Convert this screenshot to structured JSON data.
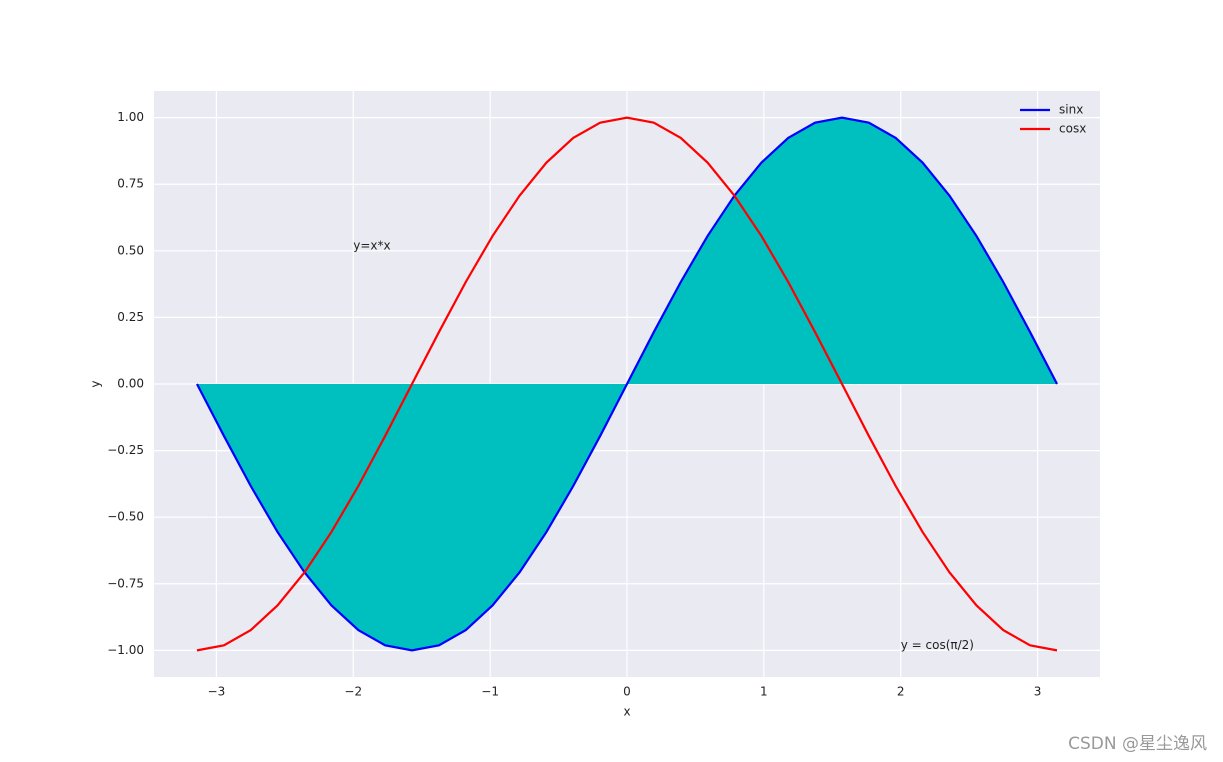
{
  "chart_data": {
    "type": "line",
    "x": [
      -3.142,
      -2.945,
      -2.749,
      -2.553,
      -2.356,
      -2.16,
      -1.963,
      -1.767,
      -1.571,
      -1.374,
      -1.178,
      -0.982,
      -0.785,
      -0.589,
      -0.393,
      -0.196,
      0,
      0.196,
      0.393,
      0.589,
      0.785,
      0.982,
      1.178,
      1.374,
      1.571,
      1.767,
      1.963,
      2.16,
      2.356,
      2.553,
      2.749,
      2.945,
      3.142
    ],
    "series": [
      {
        "name": "sinx",
        "color": "#0000ff",
        "fill": "#00bfbf",
        "values": [
          0,
          -0.195,
          -0.383,
          -0.556,
          -0.707,
          -0.831,
          -0.924,
          -0.981,
          -1,
          -0.981,
          -0.924,
          -0.831,
          -0.707,
          -0.556,
          -0.383,
          -0.195,
          0,
          0.195,
          0.383,
          0.556,
          0.707,
          0.831,
          0.924,
          0.981,
          1,
          0.981,
          0.924,
          0.831,
          0.707,
          0.556,
          0.383,
          0.195,
          0
        ]
      },
      {
        "name": "cosx",
        "color": "#ff0000",
        "values": [
          -1,
          -0.981,
          -0.924,
          -0.831,
          -0.707,
          -0.556,
          -0.383,
          -0.195,
          0,
          0.195,
          0.383,
          0.556,
          0.707,
          0.831,
          0.924,
          0.981,
          1,
          0.981,
          0.924,
          0.831,
          0.707,
          0.556,
          0.383,
          0.195,
          0,
          -0.195,
          -0.383,
          -0.556,
          -0.707,
          -0.831,
          -0.924,
          -0.981,
          -1
        ]
      }
    ],
    "xlabel": "x",
    "ylabel": "y",
    "xlim": [
      -3.456,
      3.456
    ],
    "ylim": [
      -1.1,
      1.1
    ],
    "xticks": [
      {
        "value": -3,
        "label": "−3"
      },
      {
        "value": -2,
        "label": "−2"
      },
      {
        "value": -1,
        "label": "−1"
      },
      0,
      1,
      2,
      3
    ],
    "yticks": [
      {
        "value": -1,
        "label": "−1.00"
      },
      {
        "value": -0.75,
        "label": "−0.75"
      },
      {
        "value": -0.5,
        "label": "−0.50"
      },
      {
        "value": -0.25,
        "label": "−0.25"
      },
      {
        "value": 0,
        "label": "0.00"
      },
      {
        "value": 0.25,
        "label": "0.25"
      },
      {
        "value": 0.5,
        "label": "0.50"
      },
      {
        "value": 0.75,
        "label": "0.75"
      },
      {
        "value": 1,
        "label": "1.00"
      }
    ],
    "grid": true,
    "legend": "upper right",
    "annotations": [
      {
        "text": "y=x*x",
        "x": -2,
        "y": 0.5
      },
      {
        "text": "y = cos(π/2)",
        "x": 2,
        "y": -1
      }
    ],
    "watermark": "CSDN @星尘逸风"
  }
}
